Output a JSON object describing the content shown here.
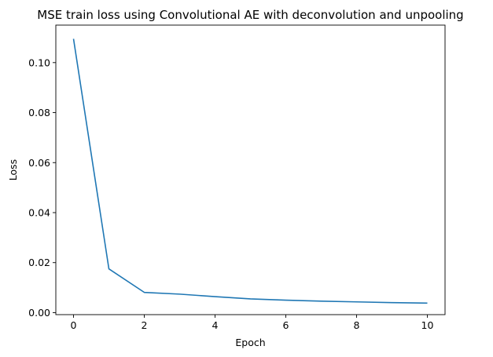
{
  "chart_data": {
    "type": "line",
    "title": "MSE train loss using Convolutional AE with deconvolution and unpooling",
    "xlabel": "Epoch",
    "ylabel": "Loss",
    "xlim": [
      -0.5,
      10.5
    ],
    "ylim": [
      -0.0008,
      0.115
    ],
    "xticks": [
      0,
      2,
      4,
      6,
      8,
      10
    ],
    "xtick_labels": [
      "0",
      "2",
      "4",
      "6",
      "8",
      "10"
    ],
    "yticks": [
      0.0,
      0.02,
      0.04,
      0.06,
      0.08,
      0.1
    ],
    "ytick_labels": [
      "0.00",
      "0.02",
      "0.04",
      "0.06",
      "0.08",
      "0.10"
    ],
    "grid": false,
    "series": [
      {
        "color": "#1f77b4",
        "x": [
          0,
          1,
          2,
          3,
          4,
          5,
          6,
          7,
          8,
          9,
          10
        ],
        "y": [
          0.1095,
          0.0175,
          0.0081,
          0.0074,
          0.0064,
          0.0055,
          0.005,
          0.0046,
          0.0043,
          0.004,
          0.0038
        ]
      }
    ]
  }
}
